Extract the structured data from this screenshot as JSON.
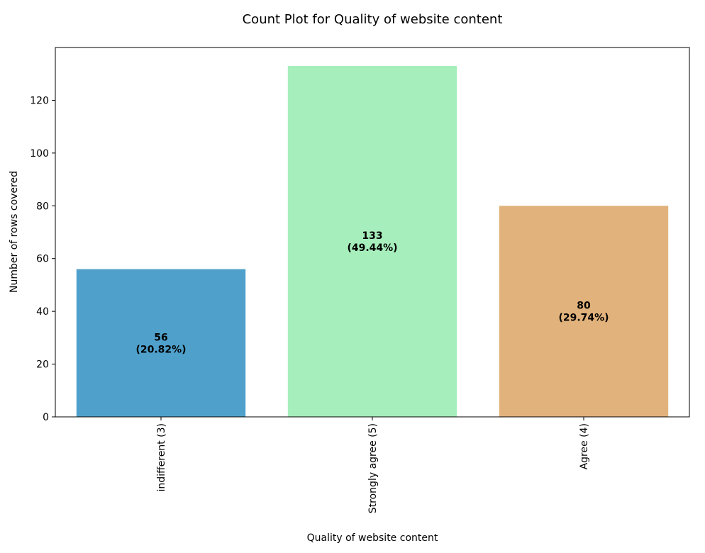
{
  "chart_data": {
    "type": "bar",
    "title": "Count Plot for Quality of website content",
    "xlabel": "Quality of website content",
    "ylabel": "Number of rows covered",
    "categories": [
      "indifferent (3)",
      "Strongly agree (5)",
      "Agree (4)"
    ],
    "values": [
      56,
      133,
      80
    ],
    "labels": [
      "56\n(20.82%)",
      "133\n(49.44%)",
      "80\n(29.74%)"
    ],
    "colors": [
      "#4fa1cc",
      "#a6eebb",
      "#e2b27c"
    ],
    "ylim": [
      0,
      140
    ],
    "yticks": [
      0,
      20,
      40,
      60,
      80,
      100,
      120
    ],
    "grid": false,
    "legend": "none",
    "x_tick_rotation": "vertical"
  }
}
